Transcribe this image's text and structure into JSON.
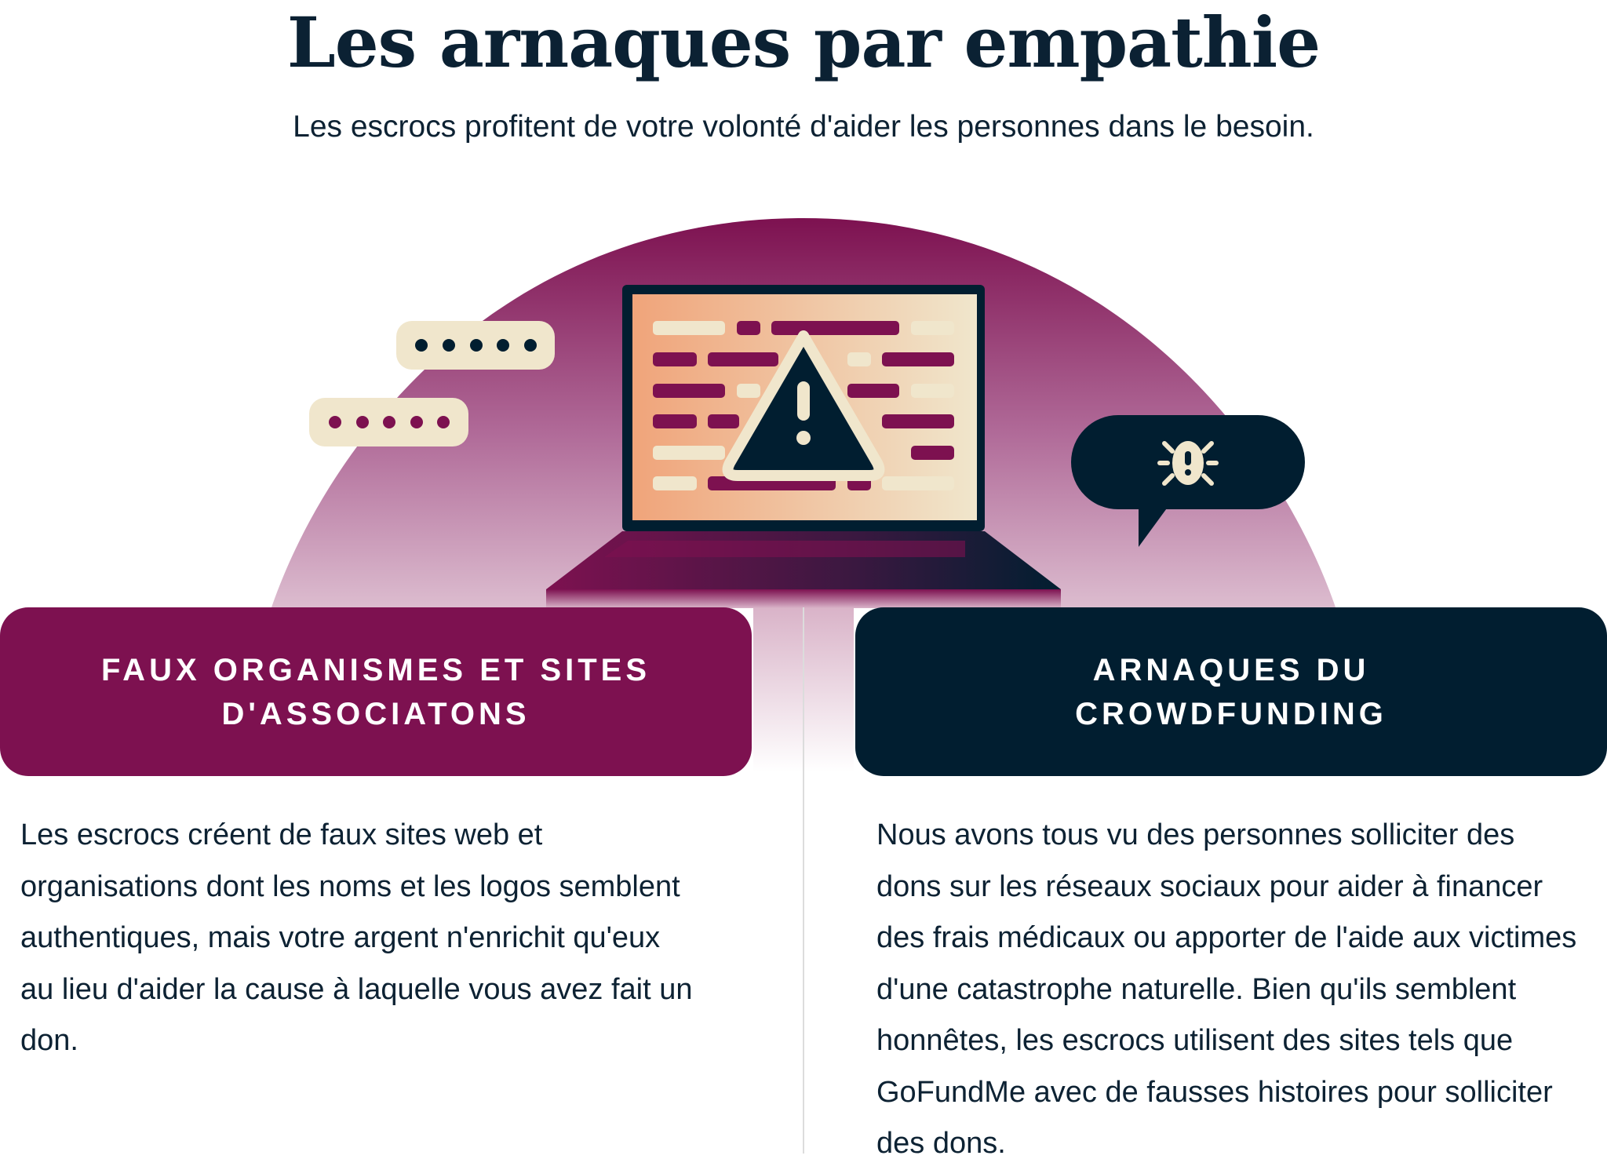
{
  "header": {
    "title": "Les arnaques par empathie",
    "subtitle": "Les escrocs profitent de votre volonté d'aider les personnes dans le besoin."
  },
  "illustration": {
    "icons": [
      "laptop-icon",
      "warning-icon",
      "password-bubble-icon",
      "bug-speech-bubble-icon"
    ],
    "colors": {
      "plum": "#7d1150",
      "navy": "#011e30",
      "cream": "#f0e6cc",
      "peach": "#f0a47a"
    }
  },
  "sections": [
    {
      "title": "FAUX ORGANISMES ET SITES D'ASSOCIATONS",
      "body": "Les escrocs créent de faux sites web et organisations dont les noms et les logos semblent authentiques, mais votre argent n'enrichit qu'eux au lieu d'aider la cause à laquelle vous avez fait un don.",
      "color": "#7d1150"
    },
    {
      "title": "ARNAQUES DU CROWDFUNDING",
      "body": "Nous avons tous vu des personnes solliciter des dons sur les réseaux sociaux pour aider à financer des frais médicaux ou apporter de l'aide aux victimes d'une catastrophe naturelle. Bien qu'ils semblent honnêtes, les escrocs utilisent des sites tels que GoFundMe avec de fausses histoires pour solliciter des dons.",
      "color": "#011e30"
    }
  ]
}
